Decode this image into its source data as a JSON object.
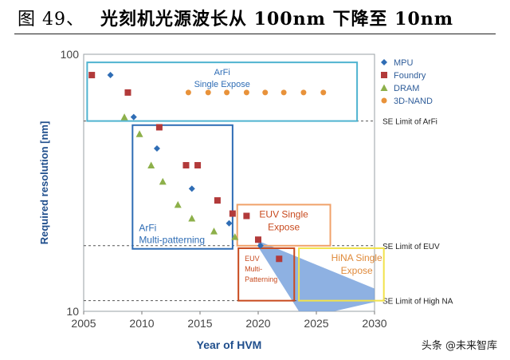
{
  "figure": {
    "number": "图 49、",
    "caption": "光刻机光源波长从 100nm 下降至 10nm"
  },
  "watermark": "头条 @未来智库",
  "chart_data": {
    "type": "scatter",
    "xlabel": "Year of HVM",
    "ylabel": "Required resolution [nm]",
    "xlim": [
      2005,
      2030
    ],
    "ylim": [
      10,
      100
    ],
    "yscale": "log",
    "xticks": [
      2005,
      2010,
      2015,
      2020,
      2025,
      2030
    ],
    "yticks": [
      10,
      100
    ],
    "series": [
      {
        "name": "MPU",
        "marker": "diamond",
        "color": "#2f6db5",
        "points": [
          [
            2007.3,
            83
          ],
          [
            2009.3,
            57
          ],
          [
            2011.3,
            43
          ],
          [
            2014.3,
            30
          ],
          [
            2017.5,
            22
          ],
          [
            2020.2,
            18
          ]
        ]
      },
      {
        "name": "Foundry",
        "marker": "square",
        "color": "#b23a3a",
        "points": [
          [
            2005.7,
            83
          ],
          [
            2008.8,
            71
          ],
          [
            2011.5,
            52
          ],
          [
            2013.8,
            37
          ],
          [
            2014.8,
            37
          ],
          [
            2016.5,
            27
          ],
          [
            2017.8,
            24
          ],
          [
            2019,
            23.5
          ],
          [
            2020,
            19
          ],
          [
            2021.8,
            16
          ]
        ]
      },
      {
        "name": "DRAM",
        "marker": "triangle",
        "color": "#8db04a",
        "points": [
          [
            2008.5,
            57
          ],
          [
            2009.8,
            49
          ],
          [
            2010.8,
            37
          ],
          [
            2011.8,
            32
          ],
          [
            2013.1,
            26
          ],
          [
            2014.3,
            23
          ],
          [
            2016.2,
            20.5
          ],
          [
            2018,
            19.5
          ]
        ]
      },
      {
        "name": "3D-NAND",
        "marker": "circle",
        "color": "#e8923a",
        "points": [
          [
            2014,
            71
          ],
          [
            2015.7,
            71
          ],
          [
            2017.3,
            71
          ],
          [
            2019,
            71
          ],
          [
            2020.6,
            71
          ],
          [
            2022.2,
            71
          ],
          [
            2023.9,
            71
          ],
          [
            2025.6,
            71
          ]
        ]
      }
    ],
    "reference_lines": [
      {
        "label": "SE Limit of ArFi",
        "y": 55
      },
      {
        "label": "SE Limit of EUV",
        "y": 18
      },
      {
        "label": "SE Limit of High NA",
        "y": 11
      }
    ],
    "regions": [
      {
        "label": "ArFi\nSingle Expose",
        "color": "#4fb3d0",
        "x": [
          2005.3,
          2028.5
        ],
        "y": [
          55,
          93
        ]
      },
      {
        "label": "ArFi\nMulti-patterning",
        "color": "#2f6db5",
        "x": [
          2009.2,
          2017.8
        ],
        "y": [
          17.5,
          53
        ]
      },
      {
        "label": "EUV Single\nExpose",
        "color": "#f0a26a",
        "x": [
          2018.2,
          2026.2
        ],
        "y": [
          18,
          26
        ]
      },
      {
        "label": "EUV\nMulti-\nPatterning",
        "color": "#c84a1e",
        "x": [
          2018.3,
          2023.1
        ],
        "y": [
          11,
          17.6
        ]
      },
      {
        "label": "HiNA Single\nExpose",
        "color": "#f2e24a",
        "x": [
          2023.5,
          2030.8
        ],
        "y": [
          11,
          17.6
        ]
      }
    ],
    "trend_band": {
      "color": "#7aa3dd",
      "points": [
        [
          2020,
          18.8
        ],
        [
          2030.5,
          12.0
        ],
        [
          2030.5,
          11.0
        ],
        [
          2026.5,
          10
        ],
        [
          2023.5,
          10
        ],
        [
          2020,
          17.8
        ]
      ]
    }
  }
}
